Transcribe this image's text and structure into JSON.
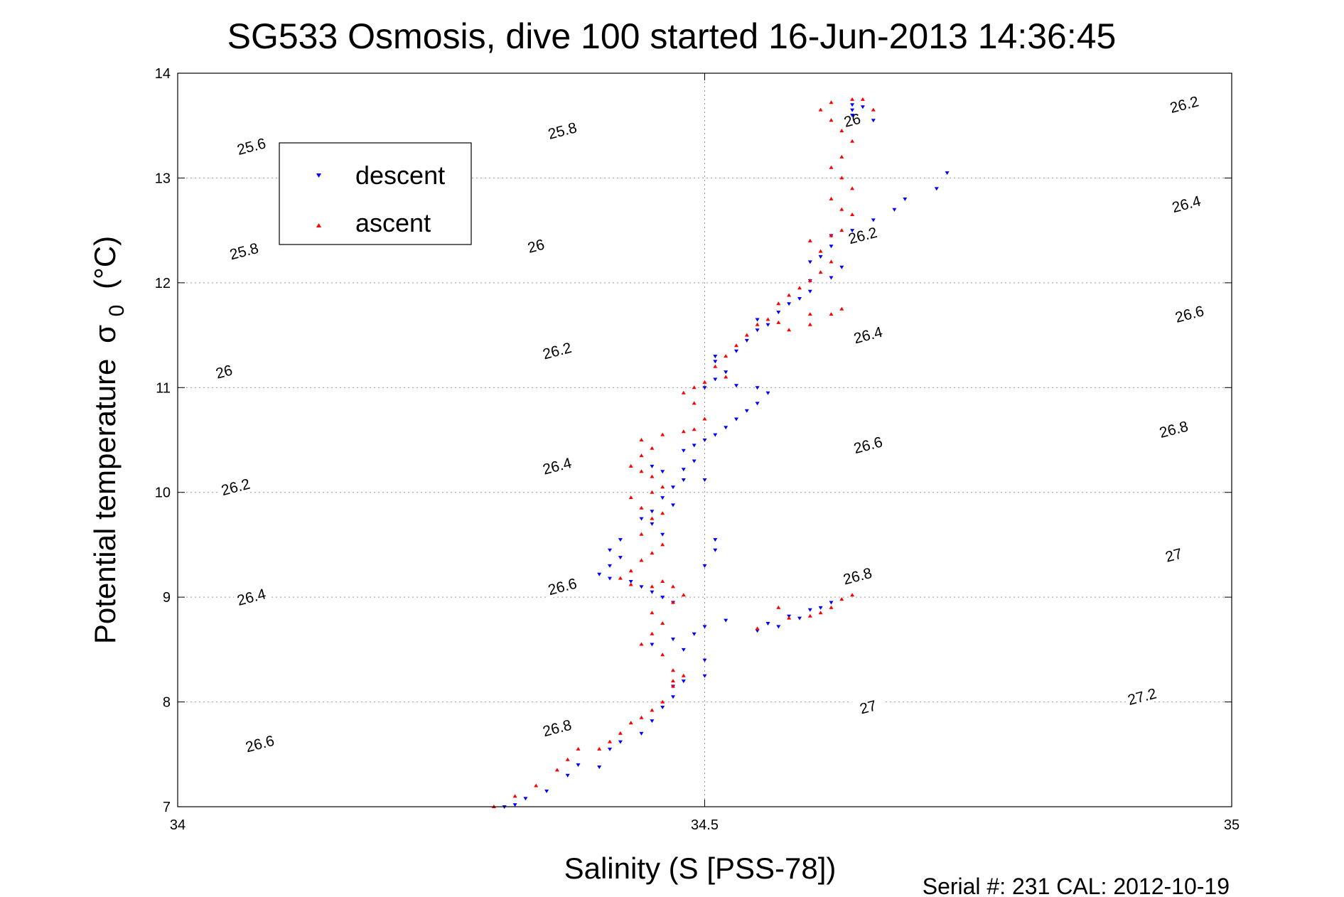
{
  "chart_data": {
    "type": "scatter",
    "title": "SG533 Osmosis, dive 100 started 16-Jun-2013 14:36:45",
    "xlabel": "Salinity (S [PSS-78])",
    "ylabel": "Potential temperature",
    "ylabel_symbol": "σ",
    "ylabel_subscript": "0",
    "ylabel_unit": "(°C)",
    "footer": "Serial #: 231  CAL: 2012-10-19",
    "xlim": [
      34,
      35
    ],
    "ylim": [
      7,
      14
    ],
    "xticks": [
      34,
      34.5,
      35
    ],
    "yticks": [
      7,
      8,
      9,
      10,
      11,
      12,
      13,
      14
    ],
    "xtick_labels": [
      "34",
      "34.5",
      "35"
    ],
    "ytick_labels": [
      "7",
      "8",
      "9",
      "10",
      "11",
      "12",
      "13",
      "14"
    ],
    "grid": true,
    "legend_position": "upper-left",
    "density_contours": {
      "levels": [
        25.6,
        25.8,
        26,
        26.2,
        26.4,
        26.6,
        26.8,
        27,
        27.2
      ],
      "inline_labels": [
        {
          "text": "25.6",
          "s": 34.07,
          "t": 13.3
        },
        {
          "text": "25.8",
          "s": 34.365,
          "t": 13.45
        },
        {
          "text": "26",
          "s": 34.64,
          "t": 13.55
        },
        {
          "text": "25.8",
          "s": 34.063,
          "t": 12.3
        },
        {
          "text": "26",
          "s": 34.34,
          "t": 12.35
        },
        {
          "text": "26.2",
          "s": 34.65,
          "t": 12.45
        },
        {
          "text": "26.2",
          "s": 34.955,
          "t": 13.7
        },
        {
          "text": "26",
          "s": 34.044,
          "t": 11.15
        },
        {
          "text": "26.2",
          "s": 34.36,
          "t": 11.35
        },
        {
          "text": "26.4",
          "s": 34.655,
          "t": 11.5
        },
        {
          "text": "26.4",
          "s": 34.957,
          "t": 12.75
        },
        {
          "text": "26.2",
          "s": 34.055,
          "t": 10.05
        },
        {
          "text": "26.4",
          "s": 34.36,
          "t": 10.25
        },
        {
          "text": "26.6",
          "s": 34.655,
          "t": 10.45
        },
        {
          "text": "26.6",
          "s": 34.96,
          "t": 11.7
        },
        {
          "text": "26.4",
          "s": 34.07,
          "t": 9.0
        },
        {
          "text": "26.6",
          "s": 34.365,
          "t": 9.1
        },
        {
          "text": "26.8",
          "s": 34.645,
          "t": 9.2
        },
        {
          "text": "26.8",
          "s": 34.945,
          "t": 10.6
        },
        {
          "text": "26.6",
          "s": 34.078,
          "t": 7.6
        },
        {
          "text": "26.8",
          "s": 34.36,
          "t": 7.75
        },
        {
          "text": "27",
          "s": 34.655,
          "t": 7.95
        },
        {
          "text": "27",
          "s": 34.945,
          "t": 9.4
        },
        {
          "text": "27.2",
          "s": 34.915,
          "t": 8.05
        }
      ]
    },
    "series": [
      {
        "name": "descent",
        "color": "#0000ff",
        "marker": "triangle-down",
        "points": [
          [
            34.31,
            7.0
          ],
          [
            34.32,
            7.02
          ],
          [
            34.33,
            7.08
          ],
          [
            34.35,
            7.15
          ],
          [
            34.37,
            7.3
          ],
          [
            34.38,
            7.4
          ],
          [
            34.4,
            7.38
          ],
          [
            34.41,
            7.55
          ],
          [
            34.42,
            7.62
          ],
          [
            34.44,
            7.7
          ],
          [
            34.45,
            7.82
          ],
          [
            34.46,
            7.95
          ],
          [
            34.47,
            8.05
          ],
          [
            34.47,
            8.15
          ],
          [
            34.48,
            8.2
          ],
          [
            34.5,
            8.25
          ],
          [
            34.5,
            8.4
          ],
          [
            34.48,
            8.5
          ],
          [
            34.45,
            8.55
          ],
          [
            34.47,
            8.6
          ],
          [
            34.49,
            8.65
          ],
          [
            34.5,
            8.72
          ],
          [
            34.52,
            8.78
          ],
          [
            34.55,
            8.68
          ],
          [
            34.57,
            8.72
          ],
          [
            34.59,
            8.8
          ],
          [
            34.61,
            8.9
          ],
          [
            34.62,
            8.95
          ],
          [
            34.6,
            8.88
          ],
          [
            34.58,
            8.82
          ],
          [
            34.56,
            8.75
          ],
          [
            34.47,
            8.95
          ],
          [
            34.46,
            9.0
          ],
          [
            34.45,
            9.05
          ],
          [
            34.44,
            9.1
          ],
          [
            34.43,
            9.15
          ],
          [
            34.41,
            9.18
          ],
          [
            34.4,
            9.22
          ],
          [
            34.41,
            9.3
          ],
          [
            34.42,
            9.38
          ],
          [
            34.41,
            9.45
          ],
          [
            34.42,
            9.55
          ],
          [
            34.51,
            9.55
          ],
          [
            34.51,
            9.45
          ],
          [
            34.5,
            9.3
          ],
          [
            34.46,
            9.6
          ],
          [
            34.45,
            9.7
          ],
          [
            34.44,
            9.75
          ],
          [
            34.45,
            9.82
          ],
          [
            34.47,
            9.88
          ],
          [
            34.46,
            9.95
          ],
          [
            34.47,
            10.05
          ],
          [
            34.48,
            10.12
          ],
          [
            34.46,
            10.2
          ],
          [
            34.45,
            10.25
          ],
          [
            34.48,
            10.22
          ],
          [
            34.5,
            10.12
          ],
          [
            34.49,
            10.3
          ],
          [
            34.48,
            10.4
          ],
          [
            34.49,
            10.45
          ],
          [
            34.5,
            10.5
          ],
          [
            34.51,
            10.55
          ],
          [
            34.52,
            10.62
          ],
          [
            34.53,
            10.7
          ],
          [
            34.54,
            10.78
          ],
          [
            34.55,
            10.85
          ],
          [
            34.56,
            10.95
          ],
          [
            34.55,
            11.0
          ],
          [
            34.53,
            11.02
          ],
          [
            34.5,
            11.0
          ],
          [
            34.51,
            11.08
          ],
          [
            34.52,
            11.15
          ],
          [
            34.51,
            11.25
          ],
          [
            34.51,
            11.3
          ],
          [
            34.53,
            11.35
          ],
          [
            34.54,
            11.45
          ],
          [
            34.55,
            11.55
          ],
          [
            34.56,
            11.6
          ],
          [
            34.55,
            11.65
          ],
          [
            34.57,
            11.72
          ],
          [
            34.58,
            11.8
          ],
          [
            34.59,
            11.85
          ],
          [
            34.6,
            11.92
          ],
          [
            34.6,
            12.02
          ],
          [
            34.62,
            12.05
          ],
          [
            34.63,
            12.15
          ],
          [
            34.6,
            12.2
          ],
          [
            34.61,
            12.25
          ],
          [
            34.62,
            12.35
          ],
          [
            34.62,
            12.45
          ],
          [
            34.64,
            12.5
          ],
          [
            34.66,
            12.6
          ],
          [
            34.68,
            12.7
          ],
          [
            34.69,
            12.8
          ],
          [
            34.72,
            12.9
          ],
          [
            34.73,
            13.05
          ],
          [
            34.64,
            13.65
          ],
          [
            34.64,
            13.7
          ],
          [
            34.65,
            13.68
          ],
          [
            34.64,
            13.6
          ],
          [
            34.66,
            13.55
          ]
        ]
      },
      {
        "name": "ascent",
        "color": "#ff0000",
        "marker": "triangle-up",
        "points": [
          [
            34.3,
            7.0
          ],
          [
            34.32,
            7.1
          ],
          [
            34.34,
            7.2
          ],
          [
            34.36,
            7.35
          ],
          [
            34.37,
            7.45
          ],
          [
            34.38,
            7.55
          ],
          [
            34.4,
            7.55
          ],
          [
            34.41,
            7.62
          ],
          [
            34.42,
            7.7
          ],
          [
            34.43,
            7.8
          ],
          [
            34.44,
            7.85
          ],
          [
            34.45,
            7.92
          ],
          [
            34.46,
            8.0
          ],
          [
            34.47,
            8.15
          ],
          [
            34.47,
            8.2
          ],
          [
            34.48,
            8.25
          ],
          [
            34.47,
            8.3
          ],
          [
            34.46,
            8.45
          ],
          [
            34.44,
            8.55
          ],
          [
            34.45,
            8.65
          ],
          [
            34.46,
            8.75
          ],
          [
            34.45,
            8.85
          ],
          [
            34.47,
            8.95
          ],
          [
            34.48,
            9.02
          ],
          [
            34.47,
            9.1
          ],
          [
            34.46,
            9.15
          ],
          [
            34.45,
            9.1
          ],
          [
            34.43,
            9.12
          ],
          [
            34.42,
            9.18
          ],
          [
            34.43,
            9.25
          ],
          [
            34.44,
            9.35
          ],
          [
            34.45,
            9.42
          ],
          [
            34.46,
            9.5
          ],
          [
            34.44,
            9.6
          ],
          [
            34.45,
            9.75
          ],
          [
            34.46,
            9.8
          ],
          [
            34.44,
            9.85
          ],
          [
            34.43,
            9.95
          ],
          [
            34.45,
            10.0
          ],
          [
            34.46,
            10.05
          ],
          [
            34.45,
            10.15
          ],
          [
            34.44,
            10.2
          ],
          [
            34.43,
            10.25
          ],
          [
            34.44,
            10.35
          ],
          [
            34.45,
            10.42
          ],
          [
            34.44,
            10.5
          ],
          [
            34.46,
            10.55
          ],
          [
            34.48,
            10.58
          ],
          [
            34.49,
            10.6
          ],
          [
            34.5,
            10.7
          ],
          [
            34.49,
            10.85
          ],
          [
            34.48,
            10.95
          ],
          [
            34.49,
            11.0
          ],
          [
            34.5,
            11.05
          ],
          [
            34.52,
            11.1
          ],
          [
            34.51,
            11.2
          ],
          [
            34.52,
            11.3
          ],
          [
            34.53,
            11.4
          ],
          [
            34.54,
            11.5
          ],
          [
            34.55,
            11.6
          ],
          [
            34.56,
            11.65
          ],
          [
            34.57,
            11.62
          ],
          [
            34.58,
            11.55
          ],
          [
            34.6,
            11.6
          ],
          [
            34.62,
            11.7
          ],
          [
            34.63,
            11.75
          ],
          [
            34.6,
            11.7
          ],
          [
            34.57,
            11.8
          ],
          [
            34.58,
            11.88
          ],
          [
            34.59,
            11.95
          ],
          [
            34.6,
            12.02
          ],
          [
            34.61,
            12.1
          ],
          [
            34.62,
            12.2
          ],
          [
            34.61,
            12.3
          ],
          [
            34.6,
            12.4
          ],
          [
            34.62,
            12.45
          ],
          [
            34.63,
            12.5
          ],
          [
            34.64,
            12.65
          ],
          [
            34.63,
            12.7
          ],
          [
            34.62,
            12.8
          ],
          [
            34.64,
            12.9
          ],
          [
            34.63,
            13.0
          ],
          [
            34.62,
            13.1
          ],
          [
            34.63,
            13.2
          ],
          [
            34.64,
            13.35
          ],
          [
            34.63,
            13.45
          ],
          [
            34.62,
            13.55
          ],
          [
            34.61,
            13.65
          ],
          [
            34.62,
            13.72
          ],
          [
            34.64,
            13.75
          ],
          [
            34.65,
            13.75
          ],
          [
            34.66,
            13.65
          ],
          [
            34.57,
            8.9
          ],
          [
            34.58,
            8.8
          ],
          [
            34.6,
            8.82
          ],
          [
            34.62,
            8.9
          ],
          [
            34.63,
            8.98
          ],
          [
            34.64,
            9.02
          ],
          [
            34.61,
            8.85
          ],
          [
            34.55,
            8.7
          ]
        ]
      }
    ]
  }
}
